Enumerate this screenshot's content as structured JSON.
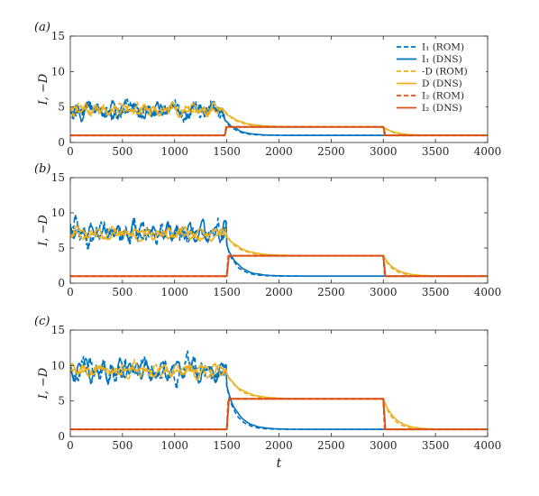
{
  "chart_data": [
    {
      "type": "line",
      "panel_label": "(a)",
      "ylabel": "I, −D",
      "xlabel": "",
      "xlim": [
        0,
        4000
      ],
      "ylim": [
        0,
        15
      ],
      "xticks": [
        0,
        500,
        1000,
        1500,
        2000,
        2500,
        3000,
        3500,
        4000
      ],
      "yticks": [
        0,
        5,
        10,
        15
      ],
      "grid": false,
      "legend": {
        "placement": "top-right",
        "entries": [
          {
            "label": "I₁ (ROM)",
            "color": "#0072BD",
            "dash": true
          },
          {
            "label": "I₁ (DNS)",
            "color": "#0072BD",
            "dash": false
          },
          {
            "label": "-D (ROM)",
            "color": "#EDB120",
            "dash": true
          },
          {
            "label": "D (DNS)",
            "color": "#EDB120",
            "dash": false
          },
          {
            "label": "I₂ (ROM)",
            "color": "#D95319",
            "dash": true
          },
          {
            "label": "I₂ (DNS)",
            "color": "#D95319",
            "dash": false
          }
        ]
      },
      "forcing_levels": {
        "low": 1.0,
        "high": 2.2,
        "on": 1480,
        "off": 3000
      },
      "series_summary": {
        "I1_turbulent_mean": 4.5,
        "I1_turbulent_amp": 1.4,
        "D_turbulent_mean": 4.6,
        "D_turbulent_amp": 0.9,
        "I1_settle": 1.0,
        "D_settle": 2.2
      },
      "series": [
        {
          "key": "I1_ROM",
          "color": "#0072BD",
          "dash": true
        },
        {
          "key": "I1_DNS",
          "color": "#0072BD",
          "dash": false
        },
        {
          "key": "D_ROM",
          "color": "#EDB120",
          "dash": true
        },
        {
          "key": "D_DNS",
          "color": "#EDB120",
          "dash": false
        },
        {
          "key": "I2_ROM",
          "color": "#D95319",
          "dash": true
        },
        {
          "key": "I2_DNS",
          "color": "#D95319",
          "dash": false
        }
      ]
    },
    {
      "type": "line",
      "panel_label": "(b)",
      "ylabel": "I, −D",
      "xlabel": "",
      "xlim": [
        0,
        4000
      ],
      "ylim": [
        0,
        15
      ],
      "xticks": [
        0,
        500,
        1000,
        1500,
        2000,
        2500,
        3000,
        3500,
        4000
      ],
      "yticks": [
        0,
        5,
        10,
        15
      ],
      "grid": false,
      "forcing_levels": {
        "low": 1.0,
        "high": 3.9,
        "on": 1500,
        "off": 3000
      },
      "series_summary": {
        "I1_turbulent_mean": 7.2,
        "I1_turbulent_amp": 2.0,
        "D_turbulent_mean": 7.0,
        "D_turbulent_amp": 1.0,
        "I1_settle": 1.0,
        "D_settle": 3.9
      },
      "series": [
        {
          "key": "I1_ROM",
          "color": "#0072BD",
          "dash": true
        },
        {
          "key": "I1_DNS",
          "color": "#0072BD",
          "dash": false
        },
        {
          "key": "D_ROM",
          "color": "#EDB120",
          "dash": true
        },
        {
          "key": "D_DNS",
          "color": "#EDB120",
          "dash": false
        },
        {
          "key": "I2_ROM",
          "color": "#D95319",
          "dash": true
        },
        {
          "key": "I2_DNS",
          "color": "#D95319",
          "dash": false
        }
      ]
    },
    {
      "type": "line",
      "panel_label": "(c)",
      "ylabel": "I, −D",
      "xlabel": "t",
      "xlim": [
        0,
        4000
      ],
      "ylim": [
        0,
        15
      ],
      "xticks": [
        0,
        500,
        1000,
        1500,
        2000,
        2500,
        3000,
        3500,
        4000
      ],
      "yticks": [
        0,
        5,
        10,
        15
      ],
      "grid": false,
      "forcing_levels": {
        "low": 1.0,
        "high": 5.3,
        "on": 1500,
        "off": 3000
      },
      "series_summary": {
        "I1_turbulent_mean": 9.3,
        "I1_turbulent_amp": 2.2,
        "D_turbulent_mean": 9.3,
        "D_turbulent_amp": 1.0,
        "I1_settle": 1.0,
        "D_settle": 5.3
      },
      "series": [
        {
          "key": "I1_ROM",
          "color": "#0072BD",
          "dash": true
        },
        {
          "key": "I1_DNS",
          "color": "#0072BD",
          "dash": false
        },
        {
          "key": "D_ROM",
          "color": "#EDB120",
          "dash": true
        },
        {
          "key": "D_DNS",
          "color": "#EDB120",
          "dash": false
        },
        {
          "key": "I2_ROM",
          "color": "#D95319",
          "dash": true
        },
        {
          "key": "I2_DNS",
          "color": "#D95319",
          "dash": false
        }
      ]
    }
  ]
}
